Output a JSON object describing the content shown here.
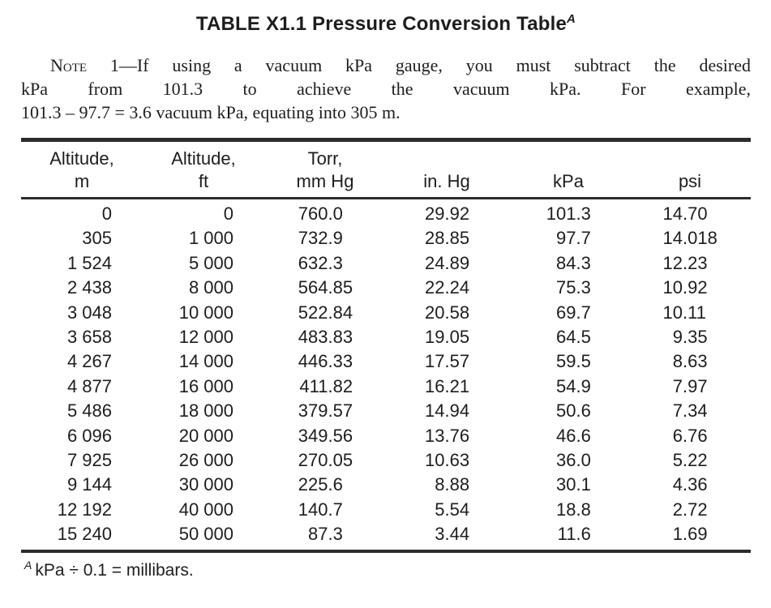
{
  "title": {
    "text": "TABLE X1.1 Pressure Conversion Table",
    "sup": "A"
  },
  "note": {
    "label": "Note 1",
    "line1_rest": "—If using a vacuum kPa gauge, you must subtract the desired",
    "line2": "kPa from 101.3 to achieve the vacuum kPa. For example,",
    "line3": "101.3 – 97.7 = 3.6 vacuum kPa, equating into 305 m."
  },
  "table": {
    "columns": [
      {
        "id": "altitude_m",
        "header": [
          "Altitude,",
          "m"
        ]
      },
      {
        "id": "altitude_ft",
        "header": [
          "Altitude,",
          "ft"
        ]
      },
      {
        "id": "torr_mm_hg",
        "header": [
          "Torr,",
          "mm Hg"
        ]
      },
      {
        "id": "in_hg",
        "header": [
          "",
          "in. Hg"
        ]
      },
      {
        "id": "kpa",
        "header": [
          "",
          "kPa"
        ]
      },
      {
        "id": "psi",
        "header": [
          "",
          "psi"
        ]
      }
    ],
    "rows": [
      [
        "0",
        "0",
        "760.0",
        "29.92",
        "101.3",
        "14.70"
      ],
      [
        "305",
        "1 000",
        "732.9",
        "28.85",
        "97.7",
        "14.018"
      ],
      [
        "1 524",
        "5 000",
        "632.3",
        "24.89",
        "84.3",
        "12.23"
      ],
      [
        "2 438",
        "8 000",
        "564.85",
        "22.24",
        "75.3",
        "10.92"
      ],
      [
        "3 048",
        "10 000",
        "522.84",
        "20.58",
        "69.7",
        "10.11"
      ],
      [
        "3 658",
        "12 000",
        "483.83",
        "19.05",
        "64.5",
        "9.35"
      ],
      [
        "4 267",
        "14 000",
        "446.33",
        "17.57",
        "59.5",
        "8.63"
      ],
      [
        "4 877",
        "16 000",
        "411.82",
        "16.21",
        "54.9",
        "7.97"
      ],
      [
        "5 486",
        "18 000",
        "379.57",
        "14.94",
        "50.6",
        "7.34"
      ],
      [
        "6 096",
        "20 000",
        "349.56",
        "13.76",
        "46.6",
        "6.76"
      ],
      [
        "7 925",
        "26 000",
        "270.05",
        "10.63",
        "36.0",
        "5.22"
      ],
      [
        "9 144",
        "30 000",
        "225.6",
        "8.88",
        "30.1",
        "4.36"
      ],
      [
        "12 192",
        "40 000",
        "140.7",
        "5.54",
        "18.8",
        "2.72"
      ],
      [
        "15 240",
        "50 000",
        "87.3",
        "3.44",
        "11.6",
        "1.69"
      ]
    ]
  },
  "footnote": {
    "sup": "A",
    "text": "kPa ÷ 0.1 = millibars."
  },
  "colors": {
    "text": "#1d1d1d",
    "rule": "#2b2b2b",
    "background": "#ffffff"
  }
}
